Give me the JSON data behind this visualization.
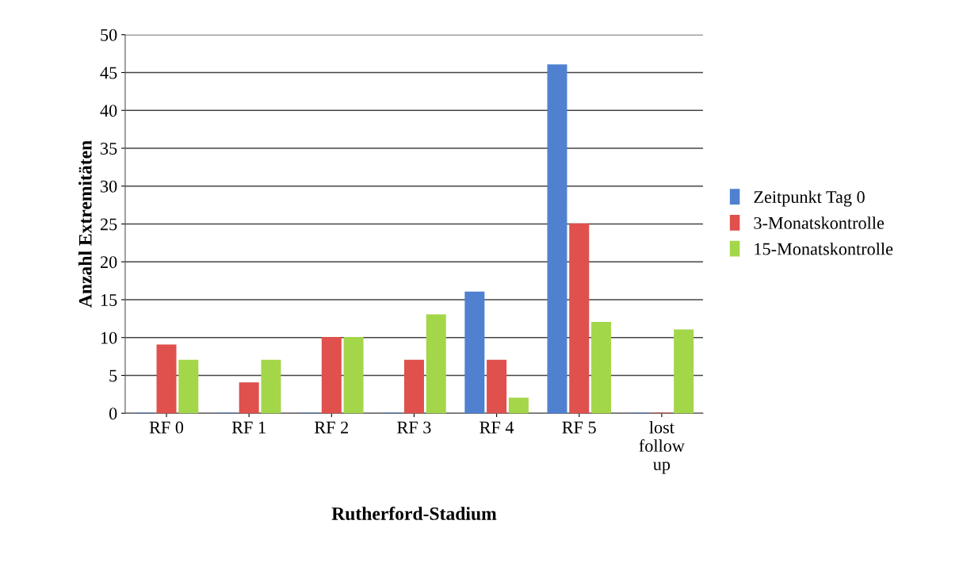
{
  "chart_data": {
    "type": "bar",
    "xlabel": "Rutherford-Stadium",
    "ylabel": "Anzahl Extremitäten",
    "categories": [
      "RF 0",
      "RF 1",
      "RF 2",
      "RF 3",
      "RF 4",
      "RF 5",
      "lost\nfollow\nup"
    ],
    "series": [
      {
        "name": "Zeitpunkt Tag 0",
        "color": "#4f81d0",
        "values": [
          0,
          0,
          0,
          0,
          16,
          46,
          0
        ]
      },
      {
        "name": "3-Monatskontrolle",
        "color": "#e0504c",
        "values": [
          9,
          4,
          10,
          7,
          7,
          25,
          0
        ]
      },
      {
        "name": "15-Monatskontrolle",
        "color": "#a4d64a",
        "values": [
          7,
          7,
          10,
          13,
          2,
          12,
          11
        ]
      }
    ],
    "ylim": [
      0,
      50
    ],
    "yticks": [
      0,
      5,
      10,
      15,
      20,
      25,
      30,
      35,
      40,
      45,
      50
    ],
    "grid": "y",
    "legend": "right"
  }
}
